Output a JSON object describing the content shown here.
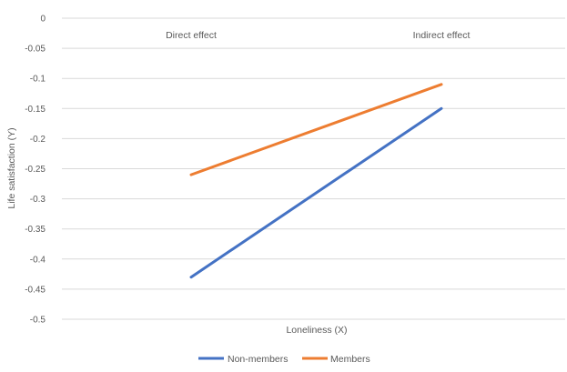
{
  "chart_data": {
    "type": "line",
    "categories": [
      "Direct effect",
      "Indirect effect"
    ],
    "series": [
      {
        "name": "Non-members",
        "values": [
          -0.43,
          -0.15
        ],
        "color": "#4472C4"
      },
      {
        "name": "Members",
        "values": [
          -0.26,
          -0.11
        ],
        "color": "#ED7D31"
      }
    ],
    "ylim": [
      -0.5,
      0
    ],
    "yticks": [
      "0",
      "-0.05",
      "-0.1",
      "-0.15",
      "-0.2",
      "-0.25",
      "-0.3",
      "-0.35",
      "-0.4",
      "-0.45",
      "-0.5"
    ],
    "xlabel": "Loneliness (X)",
    "ylabel": "Life satisfaction (Y)",
    "grid": true,
    "legend_position": "bottom"
  }
}
